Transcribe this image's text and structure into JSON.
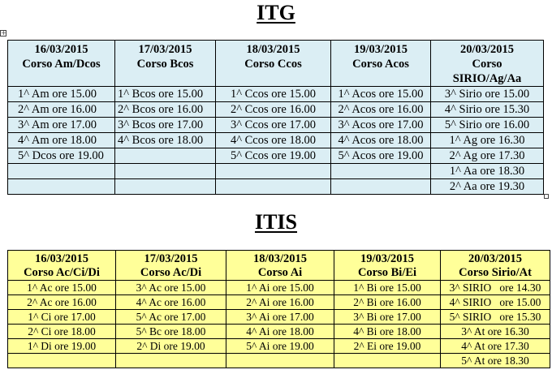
{
  "itg": {
    "title": "ITG",
    "columns": [
      {
        "date": "16/03/2015",
        "course": "Corso Am/Dcos"
      },
      {
        "date": "17/03/2015",
        "course": "Corso Bcos"
      },
      {
        "date": "18/03/2015",
        "course": "Corso Ccos"
      },
      {
        "date": "19/03/2015",
        "course": "Corso Acos"
      },
      {
        "date": "20/03/2015",
        "course": "Corso SIRIO/Ag/Aa"
      }
    ],
    "rows": [
      [
        "1^ Am ore 15.00",
        "1^ Bcos ore 15.00",
        "1^ Ccos ore 15.00",
        "1^ Acos ore 15.00",
        "3^ Sirio ore 15.00"
      ],
      [
        "2^ Am ore 16.00",
        "2^ Bcos ore 16.00",
        "2^ Ccos ore 16.00",
        "2^ Acos ore 16.00",
        "4^ Sirio ore 15.30"
      ],
      [
        "3^ Am ore 17.00",
        "3^ Bcos ore 17.00",
        "3^ Ccos ore 17.00",
        "3^ Acos ore 17.00",
        "5^ Sirio ore 16.00"
      ],
      [
        "4^ Am ore 18.00",
        "4^ Bcos ore 18.00",
        "4^ Ccos ore 18.00",
        "4^ Acos ore 18.00",
        "1^ Ag ore 16.30"
      ],
      [
        "5^ Dcos ore 19.00",
        "",
        "5^ Ccos ore 19.00",
        "5^ Acos ore 19.00",
        "2^ Ag ore 17.30"
      ],
      [
        "",
        "",
        "",
        "",
        "1^ Aa ore 18.30"
      ],
      [
        "",
        "",
        "",
        "",
        "2^ Aa ore 19.30"
      ]
    ]
  },
  "itis": {
    "title": "ITIS",
    "columns": [
      {
        "date": "16/03/2015",
        "course": "Corso Ac/Ci/Di"
      },
      {
        "date": "17/03/2015",
        "course": "Corso Ac/Di"
      },
      {
        "date": "18/03/2015",
        "course": "Corso Ai"
      },
      {
        "date": "19/03/2015",
        "course": "Corso Bi/Ei"
      },
      {
        "date": "20/03/2015",
        "course": "Corso Sirio/At"
      }
    ],
    "rows": [
      [
        "1^ Ac ore 15.00",
        "3^ Ac ore 15.00",
        "1^ Ai ore 15.00",
        "1^ Bi ore 15.00",
        "3^ SIRIO   ore 14.30"
      ],
      [
        "2^ Ac ore 16.00",
        "4^ Ac ore 16.00",
        "2^ Ai ore 16.00",
        "2^ Bi ore 16.00",
        "4^ SIRIO   ore 15.00"
      ],
      [
        "1^ Ci ore 17.00",
        "5^ Ac ore 17.00",
        "3^ Ai ore 17.00",
        "3^ Bi ore 17.00",
        "5^ SIRIO   ore 15.30"
      ],
      [
        "2^ Ci ore 18.00",
        "5^ Bc ore 18.00",
        "4^ Ai ore 18.00",
        "4^ Bi ore 18.00",
        "3^ At ore 16.30"
      ],
      [
        "1^ Di ore 19.00",
        "2^ Di ore 19.00",
        "5^ Ai ore 19.00",
        "2^ Ei ore 19.00",
        "4^ At ore 17.30"
      ],
      [
        "",
        "",
        "",
        "",
        "5^ At ore 18.30"
      ]
    ]
  }
}
